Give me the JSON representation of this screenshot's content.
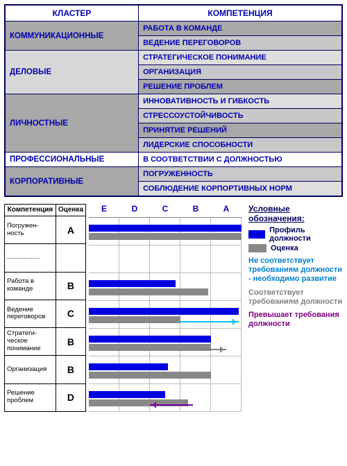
{
  "topTable": {
    "headers": {
      "cluster": "КЛАСТЕР",
      "competence": "КОМПЕТЕНЦИЯ"
    },
    "clusters": [
      {
        "name": "КОММУНИКАЦИОННЫЕ",
        "shade": "dark",
        "rows": [
          {
            "text": "РАБОТА В КОМАНДЕ",
            "shade": "dark"
          },
          {
            "text": "ВЕДЕНИЕ ПЕРЕГОВОРОВ",
            "shade": "mid"
          }
        ]
      },
      {
        "name": "ДЕЛОВЫЕ",
        "shade": "light",
        "rows": [
          {
            "text": "СТРАТЕГИЧЕСКОЕ ПОНИМАНИЕ",
            "shade": "light"
          },
          {
            "text": "ОРГАНИЗАЦИЯ",
            "shade": "mid"
          },
          {
            "text": "РЕШЕНИЕ ПРОБЛЕМ",
            "shade": "dark"
          }
        ]
      },
      {
        "name": "ЛИЧНОСТНЫЕ",
        "shade": "dark",
        "rows": [
          {
            "text": "ИННОВАТИВНОСТЬ И ГИБКОСТЬ",
            "shade": "light"
          },
          {
            "text": "СТРЕССОУСТОЙЧИВОСТЬ",
            "shade": "mid"
          },
          {
            "text": "ПРИНЯТИЕ РЕШЕНИЙ",
            "shade": "dark"
          },
          {
            "text": "ЛИДЕРСКИЕ СПОСОБНОСТИ",
            "shade": "mid"
          }
        ]
      },
      {
        "name": "ПРОФЕССИОНАЛЬНЫЕ",
        "shade": "white",
        "rows": [
          {
            "text": "В СООТВЕТСТВИИ С ДОЛЖНОСТЬЮ",
            "shade": "white"
          }
        ]
      },
      {
        "name": "КОРПОРАТИВНЫЕ",
        "shade": "dark",
        "rows": [
          {
            "text": "ПОГРУЖЕННОСТЬ",
            "shade": "mid"
          },
          {
            "text": "СОБЛЮДЕНИЕ КОРПОРТИВНЫХ НОРМ",
            "shade": "light"
          }
        ]
      }
    ]
  },
  "evalTable": {
    "headers": {
      "name": "Компетенция",
      "grade": "Оценка"
    },
    "rows": [
      {
        "name": "Погружен-\nность",
        "grade": "A"
      },
      {
        "name": "..................",
        "grade": ""
      },
      {
        "name": "Работа в команде",
        "grade": "B"
      },
      {
        "name": "Ведение переговоров",
        "grade": "C"
      },
      {
        "name": "Стратеги-\nческое понимание",
        "grade": "B"
      },
      {
        "name": "Организация",
        "grade": "B"
      },
      {
        "name": "Решение проблем",
        "grade": "D"
      }
    ]
  },
  "chart": {
    "columns": [
      "E",
      "D",
      "C",
      "B",
      "A"
    ],
    "colors": {
      "blue": "#0000e0",
      "gray": "#888888",
      "grid": "#bbbbbb",
      "arrowCyan": "#00c0ff",
      "arrowGray": "#808080",
      "arrowPurple": "#8000a0"
    },
    "rows": [
      {
        "blueEnd": 100,
        "grayEnd": 100
      },
      {
        "blueEnd": 0,
        "grayEnd": 0
      },
      {
        "blueEnd": 57,
        "grayEnd": 78
      },
      {
        "blueEnd": 98,
        "grayEnd": 60,
        "arrow": {
          "color": "cyan",
          "from": 60,
          "to": 98,
          "dir": "ltr"
        }
      },
      {
        "blueEnd": 80,
        "grayEnd": 80,
        "arrow": {
          "color": "graya",
          "from": 72,
          "to": 90,
          "dir": "ltr"
        }
      },
      {
        "blueEnd": 52,
        "grayEnd": 80
      },
      {
        "blueEnd": 50,
        "grayEnd": 65,
        "arrow": {
          "color": "purple",
          "from": 40,
          "to": 68,
          "dir": "rtl"
        }
      }
    ]
  },
  "legend": {
    "title": "Условные обозначения:",
    "profile": "Профиль должности",
    "score": "Оценка",
    "notes": [
      {
        "cls": "cyan",
        "text": "Не соответствует требованиям должности - необходимо развитие"
      },
      {
        "cls": "grayt",
        "text": "Соответствует требованиям должности"
      },
      {
        "cls": "purple",
        "text": "Превышает требования должности"
      }
    ]
  }
}
